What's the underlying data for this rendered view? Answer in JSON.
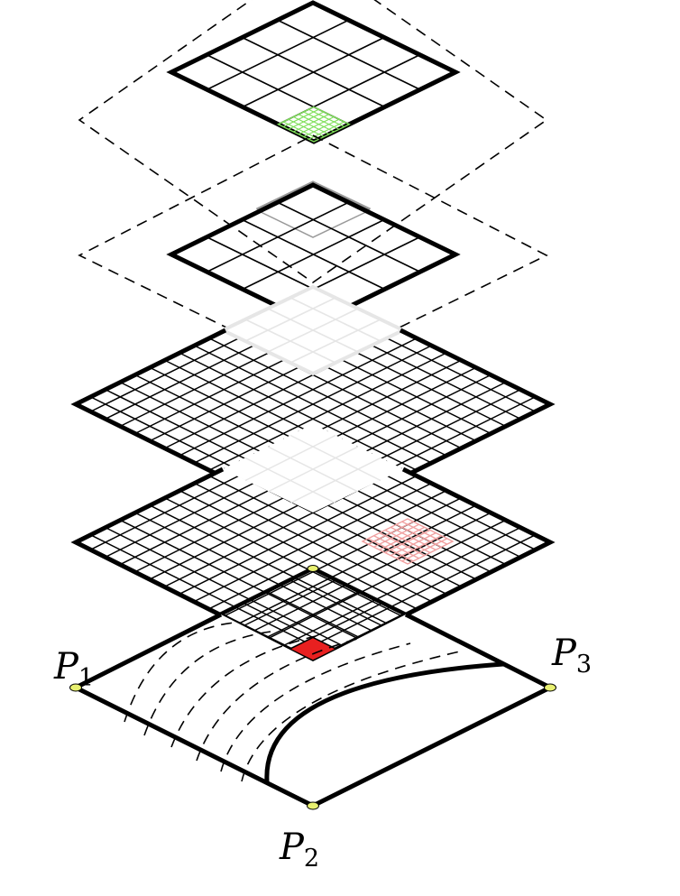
{
  "diagram": {
    "corner_labels": [
      {
        "id": "p1",
        "letter": "P",
        "index": "1"
      },
      {
        "id": "p2",
        "letter": "P",
        "index": "2"
      },
      {
        "id": "p3",
        "letter": "P",
        "index": "3"
      }
    ],
    "layers": [
      {
        "id": "layer-top",
        "divisions": 4
      },
      {
        "id": "layer-second",
        "divisions": 4
      },
      {
        "id": "layer-third",
        "divisions": 16
      },
      {
        "id": "layer-fourth",
        "divisions": 16
      },
      {
        "id": "layer-base",
        "divisions": 0
      }
    ],
    "colors": {
      "outline": "#000000",
      "green_patch": "#7fe05a",
      "pink_patch": "#f0a0a0",
      "red_cell": "#e82020",
      "corner_marker": "#e8f070",
      "ghost_gray": "#999999",
      "ghost_light": "#e6e6e6"
    }
  }
}
